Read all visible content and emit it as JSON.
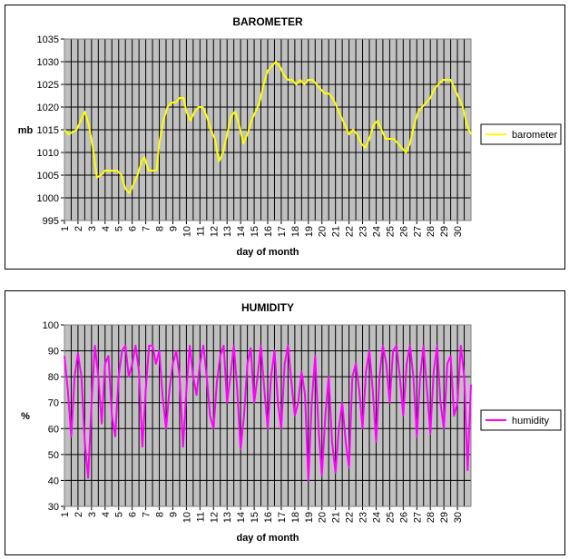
{
  "charts": [
    {
      "title": "BAROMETER",
      "xlabel": "day of month",
      "ylabel": "mb",
      "legend": "barometer"
    },
    {
      "title": "HUMIDITY",
      "xlabel": "day of month",
      "ylabel": "%",
      "legend": "humidity"
    }
  ],
  "chart_data": [
    {
      "type": "line",
      "title": "BAROMETER",
      "xlabel": "day of month",
      "ylabel": "mb",
      "ylim": [
        995,
        1035
      ],
      "y_ticks": [
        995,
        1000,
        1005,
        1010,
        1015,
        1020,
        1025,
        1030,
        1035
      ],
      "x_ticks": [
        1,
        2,
        3,
        4,
        5,
        6,
        7,
        8,
        9,
        10,
        11,
        12,
        13,
        14,
        15,
        16,
        17,
        18,
        19,
        20,
        21,
        22,
        23,
        24,
        25,
        26,
        27,
        28,
        29,
        30
      ],
      "xlim": [
        1,
        31
      ],
      "grid": true,
      "legend_position": "right",
      "series": [
        {
          "name": "barometer",
          "color": "#ffff00",
          "points": [
            [
              1,
              1015
            ],
            [
              1.3,
              1014
            ],
            [
              1.6,
              1014.5
            ],
            [
              1.9,
              1015
            ],
            [
              2.2,
              1017
            ],
            [
              2.5,
              1019
            ],
            [
              2.8,
              1016
            ],
            [
              3.1,
              1011
            ],
            [
              3.4,
              1004.5
            ],
            [
              3.7,
              1005
            ],
            [
              4.0,
              1006
            ],
            [
              4.3,
              1006
            ],
            [
              4.6,
              1006
            ],
            [
              4.9,
              1006
            ],
            [
              5.2,
              1005
            ],
            [
              5.5,
              1002
            ],
            [
              5.8,
              1001
            ],
            [
              6.1,
              1003
            ],
            [
              6.4,
              1005
            ],
            [
              6.7,
              1008
            ],
            [
              6.9,
              1009
            ],
            [
              7.2,
              1006
            ],
            [
              7.5,
              1006
            ],
            [
              7.8,
              1006
            ],
            [
              8.0,
              1012
            ],
            [
              8.3,
              1017
            ],
            [
              8.6,
              1020
            ],
            [
              8.9,
              1021
            ],
            [
              9.2,
              1021
            ],
            [
              9.5,
              1022
            ],
            [
              9.8,
              1022
            ],
            [
              10.0,
              1019
            ],
            [
              10.3,
              1017
            ],
            [
              10.6,
              1019
            ],
            [
              10.9,
              1020
            ],
            [
              11.2,
              1020
            ],
            [
              11.5,
              1018
            ],
            [
              11.8,
              1015
            ],
            [
              12.1,
              1013
            ],
            [
              12.4,
              1008
            ],
            [
              12.7,
              1010
            ],
            [
              13.0,
              1014
            ],
            [
              13.3,
              1018
            ],
            [
              13.6,
              1019
            ],
            [
              13.9,
              1016
            ],
            [
              14.2,
              1012
            ],
            [
              14.5,
              1014
            ],
            [
              14.8,
              1017
            ],
            [
              15.1,
              1019
            ],
            [
              15.4,
              1021
            ],
            [
              15.7,
              1025
            ],
            [
              16.0,
              1028
            ],
            [
              16.3,
              1029
            ],
            [
              16.6,
              1030
            ],
            [
              16.9,
              1029
            ],
            [
              17.2,
              1027
            ],
            [
              17.5,
              1026
            ],
            [
              17.8,
              1026
            ],
            [
              18.1,
              1025
            ],
            [
              18.4,
              1026
            ],
            [
              18.7,
              1025
            ],
            [
              19.0,
              1026
            ],
            [
              19.3,
              1026
            ],
            [
              19.6,
              1025
            ],
            [
              19.9,
              1024
            ],
            [
              20.2,
              1023
            ],
            [
              20.5,
              1023
            ],
            [
              20.8,
              1022
            ],
            [
              21.1,
              1020
            ],
            [
              21.4,
              1018
            ],
            [
              21.7,
              1016
            ],
            [
              22.0,
              1014
            ],
            [
              22.3,
              1015
            ],
            [
              22.6,
              1014
            ],
            [
              22.9,
              1012
            ],
            [
              23.2,
              1011
            ],
            [
              23.5,
              1013
            ],
            [
              23.8,
              1016
            ],
            [
              24.1,
              1017
            ],
            [
              24.4,
              1015
            ],
            [
              24.7,
              1013
            ],
            [
              25.0,
              1013
            ],
            [
              25.3,
              1013
            ],
            [
              25.6,
              1012
            ],
            [
              25.9,
              1011
            ],
            [
              26.2,
              1010
            ],
            [
              26.5,
              1012
            ],
            [
              26.8,
              1016
            ],
            [
              27.1,
              1019
            ],
            [
              27.4,
              1020
            ],
            [
              27.7,
              1021
            ],
            [
              28.0,
              1022
            ],
            [
              28.3,
              1024
            ],
            [
              28.6,
              1025
            ],
            [
              28.9,
              1026
            ],
            [
              29.2,
              1026
            ],
            [
              29.5,
              1026
            ],
            [
              29.8,
              1024
            ],
            [
              30.1,
              1022
            ],
            [
              30.4,
              1020
            ],
            [
              30.7,
              1016
            ],
            [
              31.0,
              1014
            ]
          ]
        }
      ]
    },
    {
      "type": "line",
      "title": "HUMIDITY",
      "xlabel": "day of month",
      "ylabel": "%",
      "ylim": [
        30,
        100
      ],
      "y_ticks": [
        30,
        40,
        50,
        60,
        70,
        80,
        90,
        100
      ],
      "x_ticks": [
        1,
        2,
        3,
        4,
        5,
        6,
        7,
        8,
        9,
        10,
        11,
        12,
        13,
        14,
        15,
        16,
        17,
        18,
        19,
        20,
        21,
        22,
        23,
        24,
        25,
        26,
        27,
        28,
        29,
        30
      ],
      "xlim": [
        1,
        31
      ],
      "grid": true,
      "legend_position": "right",
      "series": [
        {
          "name": "humidity",
          "color": "#ff00ff",
          "points": [
            [
              1,
              88
            ],
            [
              1.25,
              75
            ],
            [
              1.5,
              57
            ],
            [
              1.75,
              80
            ],
            [
              2.0,
              89
            ],
            [
              2.25,
              80
            ],
            [
              2.5,
              55
            ],
            [
              2.75,
              41
            ],
            [
              3.0,
              70
            ],
            [
              3.25,
              92
            ],
            [
              3.5,
              80
            ],
            [
              3.75,
              62
            ],
            [
              4.0,
              85
            ],
            [
              4.25,
              88
            ],
            [
              4.5,
              65
            ],
            [
              4.75,
              57
            ],
            [
              5.0,
              80
            ],
            [
              5.25,
              90
            ],
            [
              5.5,
              92
            ],
            [
              5.75,
              80
            ],
            [
              6.0,
              85
            ],
            [
              6.25,
              92
            ],
            [
              6.5,
              82
            ],
            [
              6.75,
              53
            ],
            [
              7.0,
              75
            ],
            [
              7.25,
              92
            ],
            [
              7.5,
              92
            ],
            [
              7.75,
              85
            ],
            [
              8.0,
              90
            ],
            [
              8.25,
              72
            ],
            [
              8.5,
              60
            ],
            [
              8.75,
              75
            ],
            [
              9.0,
              85
            ],
            [
              9.25,
              90
            ],
            [
              9.5,
              80
            ],
            [
              9.75,
              53
            ],
            [
              10.0,
              75
            ],
            [
              10.25,
              92
            ],
            [
              10.5,
              80
            ],
            [
              10.75,
              73
            ],
            [
              11.0,
              85
            ],
            [
              11.25,
              92
            ],
            [
              11.5,
              80
            ],
            [
              11.75,
              65
            ],
            [
              12.0,
              60
            ],
            [
              12.25,
              78
            ],
            [
              12.5,
              88
            ],
            [
              12.75,
              92
            ],
            [
              13.0,
              70
            ],
            [
              13.25,
              80
            ],
            [
              13.5,
              92
            ],
            [
              13.75,
              75
            ],
            [
              14.0,
              52
            ],
            [
              14.25,
              65
            ],
            [
              14.5,
              85
            ],
            [
              14.75,
              91
            ],
            [
              15.0,
              70
            ],
            [
              15.25,
              80
            ],
            [
              15.5,
              92
            ],
            [
              15.75,
              75
            ],
            [
              16.0,
              60
            ],
            [
              16.25,
              80
            ],
            [
              16.5,
              90
            ],
            [
              16.75,
              70
            ],
            [
              17.0,
              60
            ],
            [
              17.25,
              85
            ],
            [
              17.5,
              92
            ],
            [
              17.75,
              78
            ],
            [
              18.0,
              65
            ],
            [
              18.25,
              70
            ],
            [
              18.5,
              82
            ],
            [
              18.75,
              73
            ],
            [
              19.0,
              40
            ],
            [
              19.25,
              70
            ],
            [
              19.5,
              88
            ],
            [
              19.75,
              60
            ],
            [
              20.0,
              42
            ],
            [
              20.25,
              65
            ],
            [
              20.5,
              80
            ],
            [
              20.75,
              55
            ],
            [
              21.0,
              43
            ],
            [
              21.25,
              60
            ],
            [
              21.5,
              70
            ],
            [
              21.75,
              55
            ],
            [
              22.0,
              45
            ],
            [
              22.25,
              80
            ],
            [
              22.5,
              85
            ],
            [
              22.75,
              75
            ],
            [
              23.0,
              60
            ],
            [
              23.25,
              82
            ],
            [
              23.5,
              90
            ],
            [
              23.75,
              75
            ],
            [
              24.0,
              55
            ],
            [
              24.25,
              80
            ],
            [
              24.5,
              92
            ],
            [
              24.75,
              85
            ],
            [
              25.0,
              70
            ],
            [
              25.25,
              90
            ],
            [
              25.5,
              92
            ],
            [
              25.75,
              80
            ],
            [
              26.0,
              65
            ],
            [
              26.25,
              85
            ],
            [
              26.5,
              92
            ],
            [
              26.75,
              80
            ],
            [
              27.0,
              57
            ],
            [
              27.25,
              80
            ],
            [
              27.5,
              92
            ],
            [
              27.75,
              75
            ],
            [
              28.0,
              58
            ],
            [
              28.25,
              82
            ],
            [
              28.5,
              92
            ],
            [
              28.75,
              70
            ],
            [
              29.0,
              60
            ],
            [
              29.25,
              85
            ],
            [
              29.5,
              88
            ],
            [
              29.75,
              65
            ],
            [
              30.0,
              70
            ],
            [
              30.25,
              92
            ],
            [
              30.5,
              80
            ],
            [
              30.75,
              44
            ],
            [
              31.0,
              77
            ]
          ]
        }
      ]
    }
  ]
}
